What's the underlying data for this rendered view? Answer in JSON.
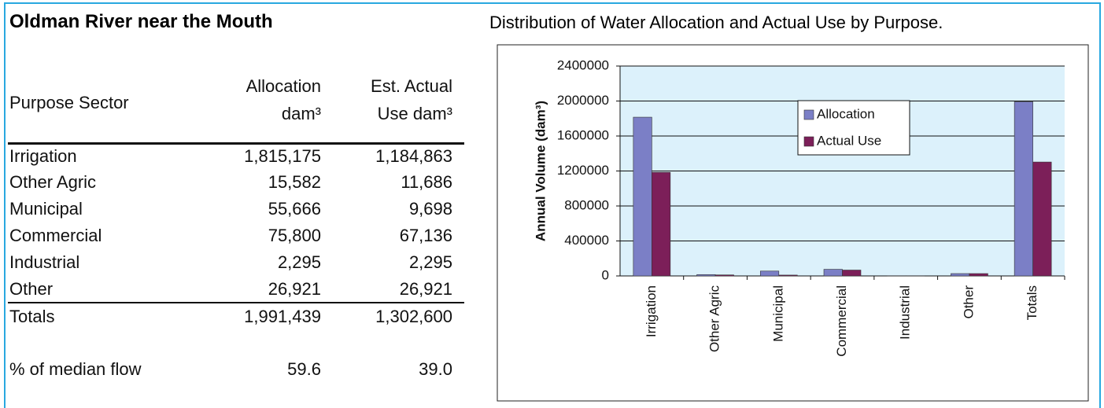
{
  "header": {
    "title": "Oldman River near the Mouth"
  },
  "table": {
    "header": [
      [
        "Purpose Sector"
      ],
      [
        "Allocation",
        "dam³"
      ],
      [
        "Est. Actual",
        "Use dam³"
      ]
    ],
    "rows": [
      [
        "Irrigation",
        "1,815,175",
        "1,184,863"
      ],
      [
        "Other Agric",
        "15,582",
        "11,686"
      ],
      [
        "Municipal",
        "55,666",
        "9,698"
      ],
      [
        "Commercial",
        "75,800",
        "67,136"
      ],
      [
        "Industrial",
        "2,295",
        "2,295"
      ],
      [
        "Other",
        "26,921",
        "26,921"
      ],
      [
        "Totals",
        "1,991,439",
        "1,302,600"
      ],
      [
        "% of median flow",
        "59.6",
        "39.0"
      ]
    ]
  },
  "chart_data": {
    "type": "bar",
    "title": "Distribution of Water Allocation and Actual Use by Purpose.",
    "y_label": "Annual Volume (dam³)",
    "categories": [
      "Irrigation",
      "Other Agric",
      "Municipal",
      "Commercial",
      "Industrial",
      "Other",
      "Totals"
    ],
    "series": [
      {
        "name": "Allocation",
        "color": "#7b7fc6",
        "values": [
          1815175,
          15582,
          55666,
          75800,
          2295,
          26921,
          1991439
        ]
      },
      {
        "name": "Actual Use",
        "color": "#7c1f59",
        "values": [
          1184863,
          11686,
          9698,
          67136,
          2295,
          26921,
          1302600
        ]
      }
    ],
    "ylim": [
      0,
      2400000
    ],
    "yticks": [
      0,
      400000,
      800000,
      1200000,
      1600000,
      2000000,
      2400000
    ],
    "grid": true,
    "legend": "upper right",
    "background": "#dcf1fb"
  }
}
